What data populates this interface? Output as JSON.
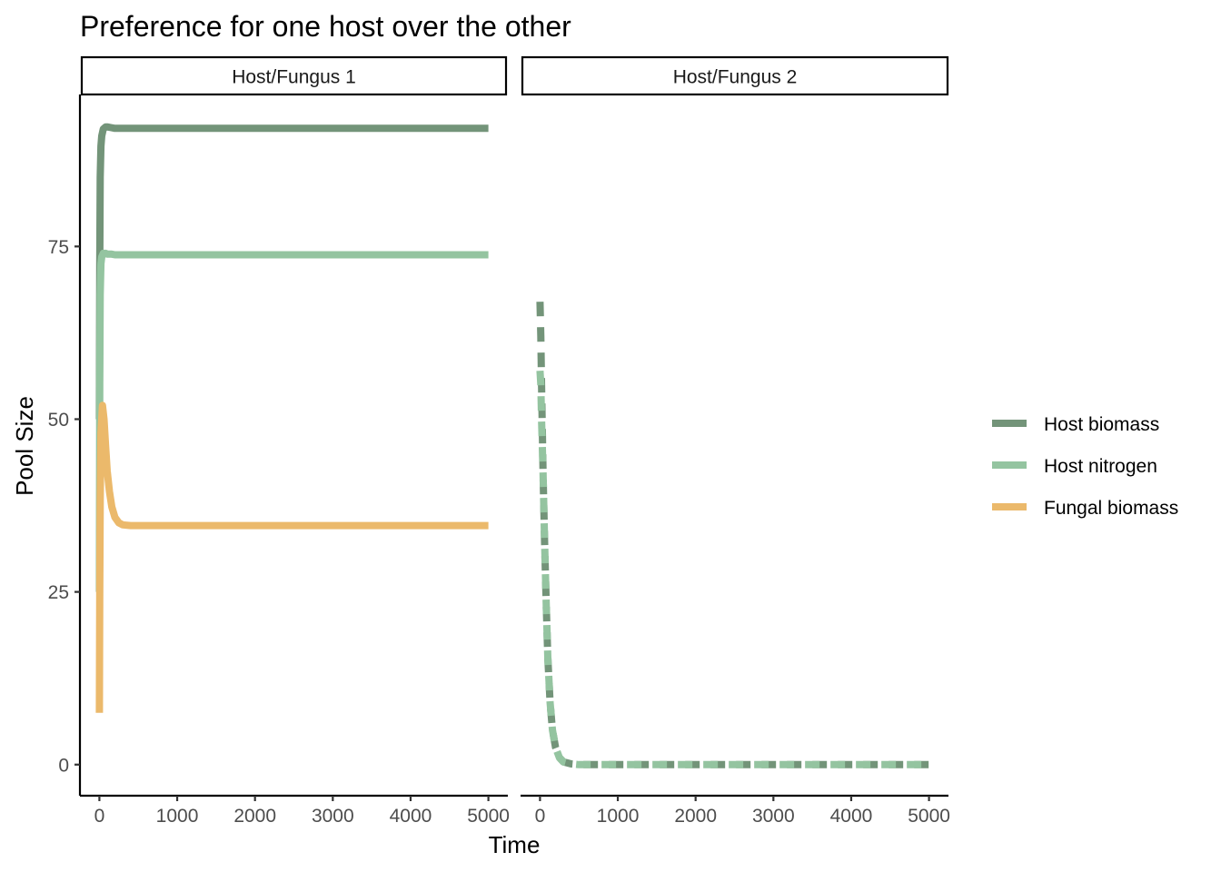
{
  "chart_data": {
    "type": "line",
    "title": "Preference for one host over the other",
    "xlabel": "Time",
    "ylabel": "Pool Size",
    "xlim": [
      -250,
      5250
    ],
    "ylim": [
      -4.5,
      97
    ],
    "xticks": [
      0,
      1000,
      2000,
      3000,
      4000,
      5000
    ],
    "yticks": [
      0,
      25,
      50,
      75
    ],
    "grid": false,
    "legend_position": "right",
    "colors": {
      "host_biomass": "#739479",
      "host_nitrogen": "#94c4a0",
      "fungal_biomass": "#ebb96b"
    },
    "panels": [
      {
        "label": "Host/Fungus 1",
        "series": [
          {
            "name": "Host biomass",
            "color": "#739479",
            "linestyle": "solid",
            "x": [
              0,
              5,
              10,
              20,
              30,
              50,
              80,
              100,
              150,
              200,
              300,
              500,
              1000,
              2000,
              3000,
              4000,
              5000
            ],
            "y": [
              50,
              72,
              85,
              89.5,
              91,
              92,
              92.3,
              92.3,
              92.2,
              92.1,
              92.1,
              92.1,
              92.1,
              92.1,
              92.1,
              92.1,
              92.1
            ]
          },
          {
            "name": "Host nitrogen",
            "color": "#94c4a0",
            "linestyle": "solid",
            "x": [
              0,
              5,
              10,
              20,
              30,
              50,
              80,
              100,
              150,
              200,
              300,
              500,
              1000,
              2000,
              3000,
              4000,
              5000
            ],
            "y": [
              25,
              55,
              68,
              72.5,
              73.5,
              74,
              74,
              73.9,
              73.9,
              73.8,
              73.8,
              73.8,
              73.8,
              73.8,
              73.8,
              73.8,
              73.8
            ]
          },
          {
            "name": "Fungal biomass",
            "color": "#ebb96b",
            "linestyle": "solid",
            "x": [
              0,
              5,
              10,
              20,
              40,
              60,
              80,
              100,
              130,
              160,
              200,
              250,
              300,
              400,
              500,
              1000,
              2000,
              3000,
              4000,
              5000
            ],
            "y": [
              7.5,
              25,
              38,
              48,
              52,
              50,
              46,
              42.5,
              39.5,
              37.3,
              35.8,
              35,
              34.7,
              34.6,
              34.6,
              34.6,
              34.6,
              34.6,
              34.6,
              34.6
            ]
          }
        ]
      },
      {
        "label": "Host/Fungus 2",
        "series": [
          {
            "name": "Host biomass",
            "color": "#739479",
            "linestyle": "dashed",
            "x": [
              0,
              10,
              20,
              40,
              60,
              80,
              100,
              130,
              160,
              200,
              250,
              300,
              400,
              500,
              1000,
              2000,
              3000,
              4000,
              5000
            ],
            "y": [
              67,
              62,
              55,
              42,
              32,
              23,
              15.5,
              9,
              5,
              2.5,
              1,
              0.4,
              0.1,
              0,
              0,
              0,
              0,
              0,
              0
            ]
          },
          {
            "name": "Host nitrogen",
            "color": "#94c4a0",
            "linestyle": "dashed",
            "x": [
              0,
              10,
              20,
              40,
              60,
              80,
              100,
              130,
              160,
              200,
              250,
              300,
              400,
              500,
              1000,
              2000,
              3000,
              4000,
              5000
            ],
            "y": [
              57,
              55,
              50,
              42,
              32,
              23,
              15.5,
              9,
              5,
              2.5,
              1,
              0.4,
              0.1,
              0,
              0,
              0,
              0,
              0,
              0
            ]
          }
        ]
      }
    ],
    "legend": [
      {
        "label": "Host biomass",
        "color": "#739479"
      },
      {
        "label": "Host nitrogen",
        "color": "#94c4a0"
      },
      {
        "label": "Fungal biomass",
        "color": "#ebb96b"
      }
    ]
  }
}
